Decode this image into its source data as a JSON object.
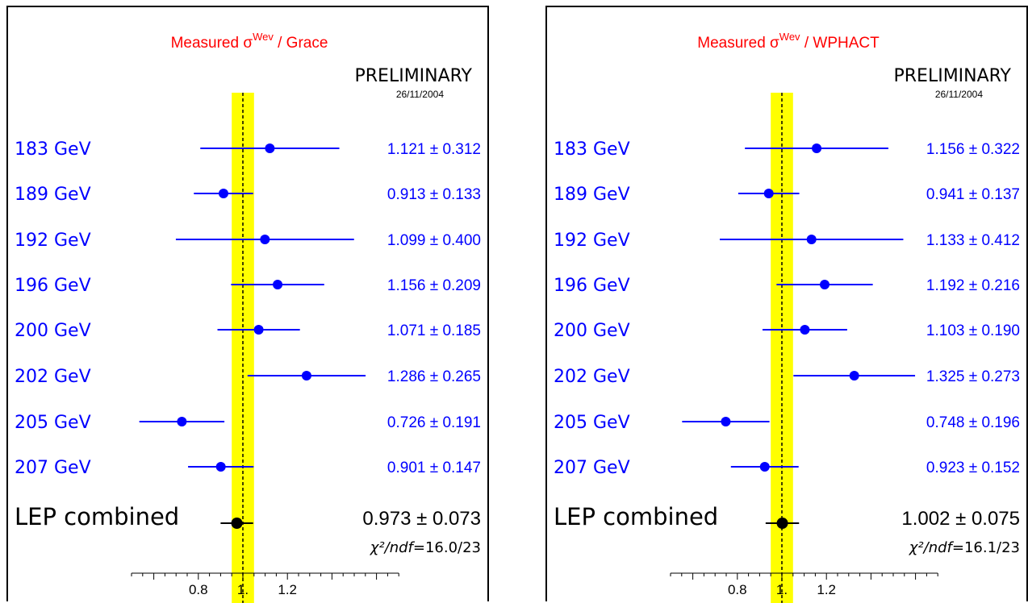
{
  "chart_data": [
    {
      "type": "scatter",
      "title": "Measured σ^Wev / Grace",
      "title_main": "Measured σ",
      "title_sup": "Wev",
      "title_tail": " / Grace",
      "preliminary": "PRELIMINARY",
      "date": "26/11/2004",
      "categories": [
        "183 GeV",
        "189 GeV",
        "192 GeV",
        "196 GeV",
        "200 GeV",
        "202 GeV",
        "205 GeV",
        "207 GeV"
      ],
      "values": [
        1.121,
        0.913,
        1.099,
        1.156,
        1.071,
        1.286,
        0.726,
        0.901
      ],
      "errors": [
        0.312,
        0.133,
        0.4,
        0.209,
        0.185,
        0.265,
        0.191,
        0.147
      ],
      "value_labels": [
        "1.121 ± 0.312",
        "0.913 ± 0.133",
        "1.099 ± 0.400",
        "1.156 ± 0.209",
        "1.071 ± 0.185",
        "1.286 ± 0.265",
        "0.726 ± 0.191",
        "0.901 ± 0.147"
      ],
      "combined": {
        "label": "LEP combined",
        "value": 0.973,
        "error": 0.073,
        "value_label": "0.973 ± 0.073",
        "chi2": "16.0/23"
      },
      "chi2_prefix": "χ²/ndf=",
      "band": [
        0.95,
        1.05
      ],
      "reference": 1.0,
      "xlim": [
        0.5,
        1.7
      ],
      "xticks": [
        "0.8",
        "1.",
        "1.2"
      ],
      "xtick_values": [
        0.8,
        1.0,
        1.2
      ],
      "colors": {
        "series": "#0000ff",
        "combined": "#000000",
        "band": "#ffff00",
        "title": "#ff0000"
      }
    },
    {
      "type": "scatter",
      "title": "Measured σ^Wev / WPHACT",
      "title_main": "Measured σ",
      "title_sup": "Wev",
      "title_tail": " / WPHACT",
      "preliminary": "PRELIMINARY",
      "date": "26/11/2004",
      "categories": [
        "183 GeV",
        "189 GeV",
        "192 GeV",
        "196 GeV",
        "200 GeV",
        "202 GeV",
        "205 GeV",
        "207 GeV"
      ],
      "values": [
        1.156,
        0.941,
        1.133,
        1.192,
        1.103,
        1.325,
        0.748,
        0.923
      ],
      "errors": [
        0.322,
        0.137,
        0.412,
        0.216,
        0.19,
        0.273,
        0.196,
        0.152
      ],
      "value_labels": [
        "1.156 ± 0.322",
        "0.941 ± 0.137",
        "1.133 ± 0.412",
        "1.192 ± 0.216",
        "1.103 ± 0.190",
        "1.325 ± 0.273",
        "0.748 ± 0.196",
        "0.923 ± 0.152"
      ],
      "combined": {
        "label": "LEP combined",
        "value": 1.002,
        "error": 0.075,
        "value_label": "1.002 ± 0.075",
        "chi2": "16.1/23"
      },
      "chi2_prefix": "χ²/ndf=",
      "band": [
        0.95,
        1.05
      ],
      "reference": 1.0,
      "xlim": [
        0.5,
        1.7
      ],
      "xticks": [
        "0.8",
        "1.",
        "1.2"
      ],
      "xtick_values": [
        0.8,
        1.0,
        1.2
      ],
      "colors": {
        "series": "#0000ff",
        "combined": "#000000",
        "band": "#ffff00",
        "title": "#ff0000"
      }
    }
  ]
}
